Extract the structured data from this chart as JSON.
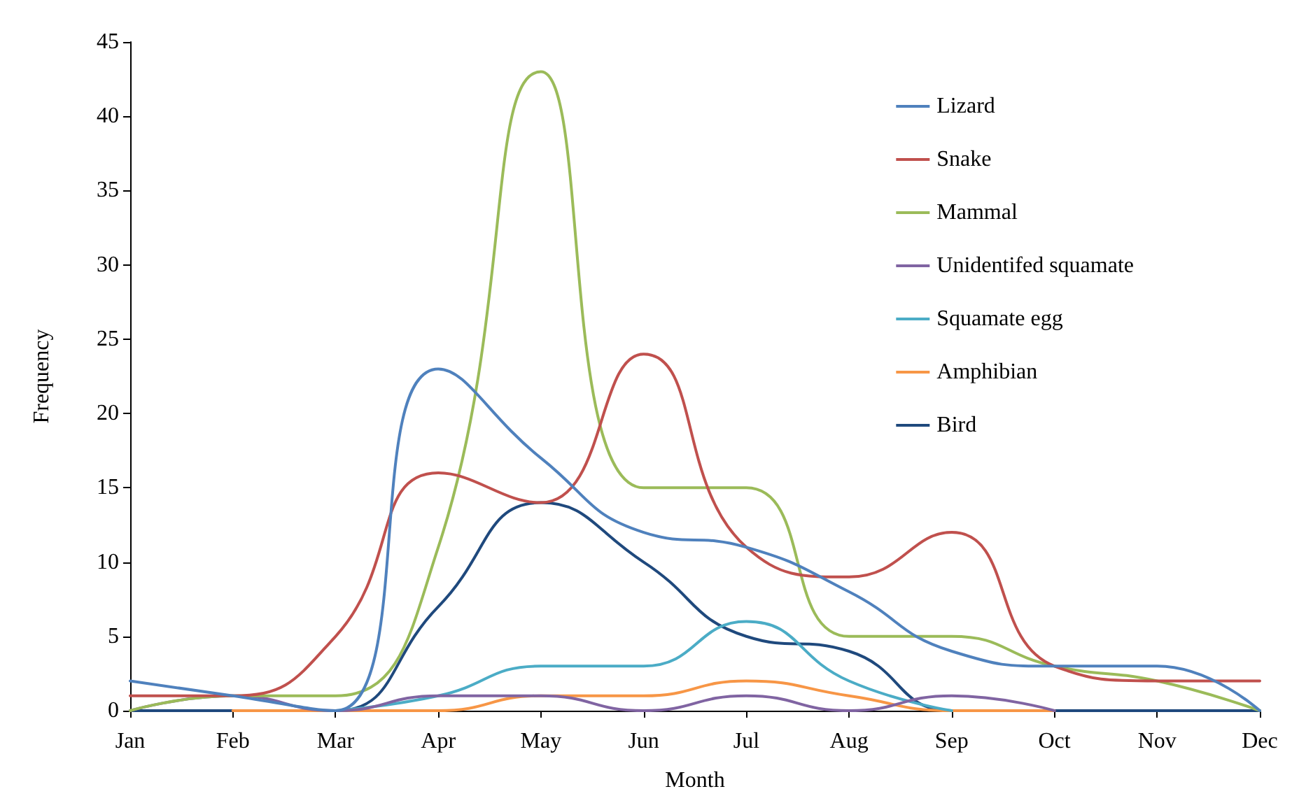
{
  "chart_data": {
    "type": "line",
    "xlabel": "Month",
    "ylabel": "Frequency",
    "categories": [
      "Jan",
      "Feb",
      "Mar",
      "Apr",
      "May",
      "Jun",
      "Jul",
      "Aug",
      "Sep",
      "Oct",
      "Nov",
      "Dec"
    ],
    "series": [
      {
        "name": "Lizard",
        "color": "#4f81bd",
        "values": [
          2,
          1,
          0,
          23,
          17,
          12,
          11,
          8,
          4,
          3,
          3,
          0
        ]
      },
      {
        "name": "Snake",
        "color": "#c0504d",
        "values": [
          1,
          1,
          5,
          16,
          14,
          24,
          11,
          9,
          12,
          3,
          2,
          2
        ]
      },
      {
        "name": "Mammal",
        "color": "#9bbb59",
        "values": [
          0,
          1,
          1,
          11,
          43,
          15,
          15,
          5,
          5,
          3,
          2,
          0
        ]
      },
      {
        "name": "Unidentifed squamate",
        "color": "#8064a2",
        "values": [
          0,
          1,
          0,
          1,
          1,
          0,
          1,
          0,
          1,
          0,
          null,
          null
        ]
      },
      {
        "name": "Squamate egg",
        "color": "#4bacc6",
        "values": [
          null,
          null,
          0,
          1,
          3,
          3,
          6,
          2,
          0,
          null,
          null,
          null
        ]
      },
      {
        "name": "Amphibian",
        "color": "#f79646",
        "values": [
          null,
          0,
          0,
          0,
          1,
          1,
          2,
          1,
          0,
          0,
          null,
          null
        ]
      },
      {
        "name": "Bird",
        "color": "#1f497d",
        "values": [
          0,
          0,
          0,
          7,
          14,
          10,
          5,
          4,
          0,
          0,
          0,
          0
        ]
      }
    ],
    "ylim": [
      0,
      45
    ],
    "yticks": [
      0,
      5,
      10,
      15,
      20,
      25,
      30,
      35,
      40,
      45
    ],
    "grid": false,
    "legend": "top right",
    "marker": "none",
    "line_style": "solid"
  }
}
